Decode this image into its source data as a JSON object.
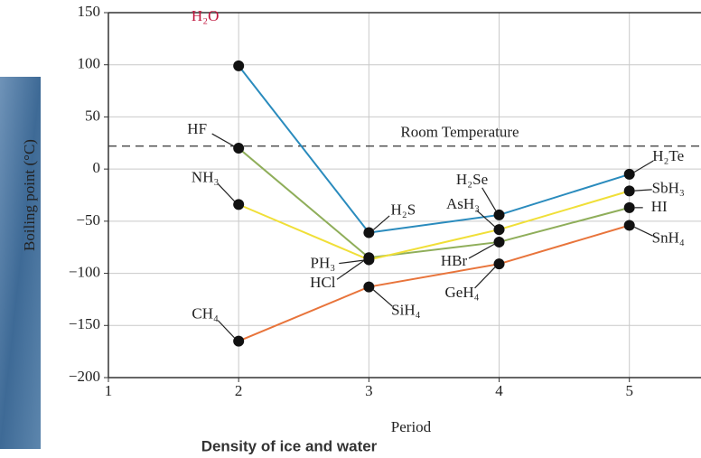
{
  "chart_data": {
    "type": "line",
    "title": "Density of ice and water",
    "xlabel": "Period",
    "ylabel": "Boiling point (°C)",
    "x": [
      2,
      3,
      4,
      5
    ],
    "series": [
      {
        "color": "#2a8bbd",
        "values": [
          99,
          -61,
          -44,
          -5
        ],
        "labels": [
          "H₂O",
          "H₂S",
          "H₂Se",
          "H₂Te"
        ]
      },
      {
        "color": "#8fae5a",
        "values": [
          20,
          -85,
          -70,
          -37
        ],
        "labels": [
          "HF",
          "HCl",
          "HBr",
          "HI"
        ]
      },
      {
        "color": "#f0df38",
        "values": [
          -34,
          -87,
          -58,
          -21
        ],
        "labels": [
          "NH₃",
          "PH₃",
          "AsH₃",
          "SbH₃"
        ]
      },
      {
        "color": "#e8743b",
        "values": [
          -165,
          -113,
          -91,
          -54
        ],
        "labels": [
          "CH₄",
          "SiH₄",
          "GeH₄",
          "SnH₄"
        ]
      }
    ],
    "reference_line": {
      "value": 22,
      "label": "Room Temperature"
    },
    "xlim": [
      1,
      5.55
    ],
    "xticks": [
      1,
      2,
      3,
      4,
      5
    ],
    "ylim": [
      -200,
      150
    ],
    "yticks": [
      {
        "value": -200,
        "label": "−200"
      },
      {
        "value": -150,
        "label": "−150"
      },
      {
        "value": -100,
        "label": "−100"
      },
      {
        "value": -50,
        "label": "−50"
      },
      0,
      50,
      100,
      150
    ],
    "grid": true
  }
}
